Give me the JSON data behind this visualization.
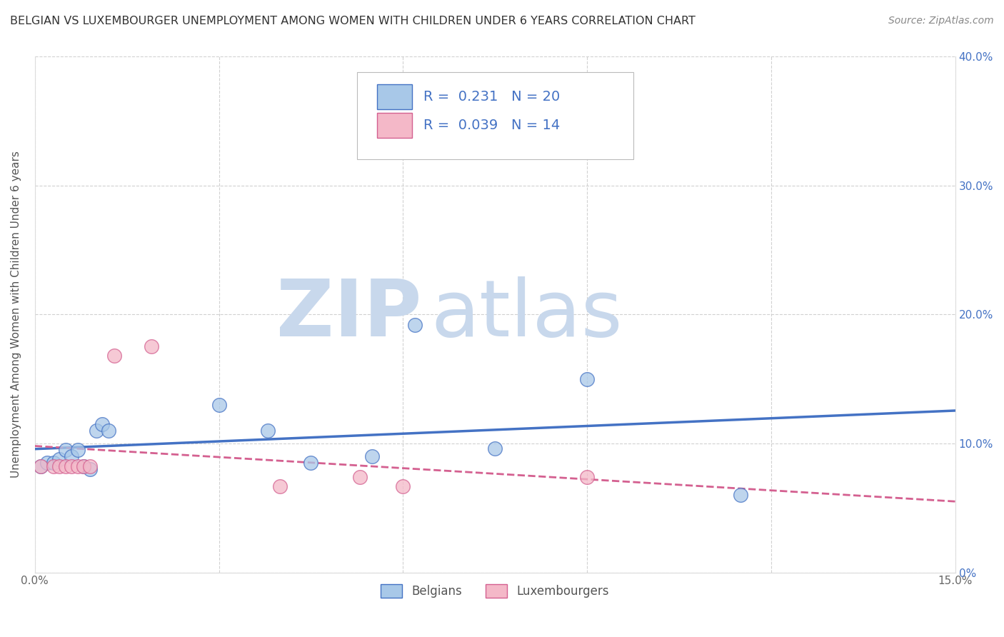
{
  "title": "BELGIAN VS LUXEMBOURGER UNEMPLOYMENT AMONG WOMEN WITH CHILDREN UNDER 6 YEARS CORRELATION CHART",
  "source": "Source: ZipAtlas.com",
  "ylabel": "Unemployment Among Women with Children Under 6 years",
  "xlim": [
    0.0,
    0.15
  ],
  "ylim": [
    0.0,
    0.4
  ],
  "xticks": [
    0.0,
    0.03,
    0.06,
    0.09,
    0.12,
    0.15
  ],
  "xtick_labels": [
    "0.0%",
    "",
    "",
    "",
    "",
    "15.0%"
  ],
  "yticks": [
    0.0,
    0.1,
    0.2,
    0.3,
    0.4
  ],
  "ytick_labels_right": [
    "0%",
    "10.0%",
    "20.0%",
    "30.0%",
    "40.0%"
  ],
  "belgian_x": [
    0.001,
    0.002,
    0.003,
    0.004,
    0.005,
    0.006,
    0.007,
    0.008,
    0.009,
    0.01,
    0.011,
    0.012,
    0.03,
    0.038,
    0.045,
    0.055,
    0.062,
    0.075,
    0.09,
    0.115
  ],
  "belgian_y": [
    0.082,
    0.085,
    0.085,
    0.088,
    0.095,
    0.09,
    0.095,
    0.082,
    0.08,
    0.11,
    0.115,
    0.11,
    0.13,
    0.11,
    0.085,
    0.09,
    0.192,
    0.096,
    0.15,
    0.06
  ],
  "luxembourger_x": [
    0.001,
    0.003,
    0.004,
    0.005,
    0.006,
    0.007,
    0.008,
    0.009,
    0.013,
    0.019,
    0.04,
    0.053,
    0.06,
    0.09
  ],
  "luxembourger_y": [
    0.082,
    0.082,
    0.082,
    0.082,
    0.082,
    0.082,
    0.082,
    0.082,
    0.168,
    0.175,
    0.067,
    0.074,
    0.067,
    0.074
  ],
  "belgian_color": "#a8c8e8",
  "luxembourger_color": "#f4b8c8",
  "belgian_line_color": "#4472c4",
  "luxembourger_line_color": "#d46090",
  "R_belgian": 0.231,
  "N_belgian": 20,
  "R_luxembourger": 0.039,
  "N_luxembourger": 14,
  "watermark_zip": "ZIP",
  "watermark_atlas": "atlas",
  "watermark_color": "#d8e8f4",
  "background_color": "#ffffff",
  "grid_color": "#cccccc"
}
